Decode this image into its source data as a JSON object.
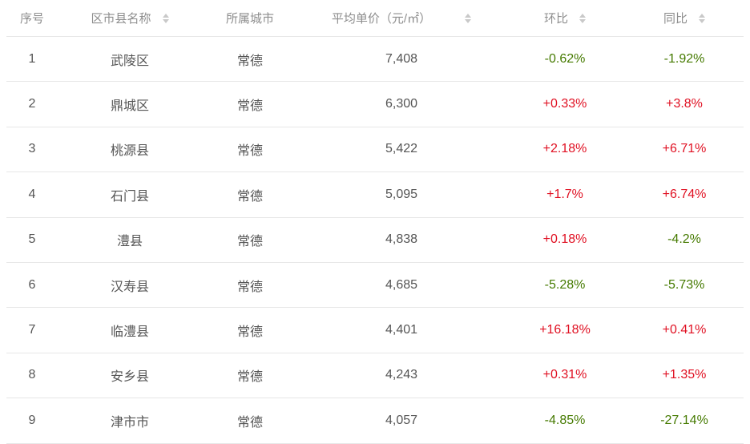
{
  "colors": {
    "trend_up_red": "#e01022",
    "trend_down_green": "#457a00",
    "header_text": "#8e8e8e",
    "body_text": "#555555",
    "divider": "#e7e7e7",
    "sort_icon": "#c9c9c9"
  },
  "table": {
    "columns": {
      "index": "序号",
      "district": "区市县名称",
      "city": "所属城市",
      "price": "平均单价（元/㎡）",
      "mom": "环比",
      "yoy": "同比"
    },
    "rows": [
      {
        "index": "1",
        "district": "武陵区",
        "city": "常德",
        "price": "7,408",
        "mom": "-0.62%",
        "mom_trend": "down",
        "yoy": "-1.92%",
        "yoy_trend": "down"
      },
      {
        "index": "2",
        "district": "鼎城区",
        "city": "常德",
        "price": "6,300",
        "mom": "+0.33%",
        "mom_trend": "up",
        "yoy": "+3.8%",
        "yoy_trend": "up"
      },
      {
        "index": "3",
        "district": "桃源县",
        "city": "常德",
        "price": "5,422",
        "mom": "+2.18%",
        "mom_trend": "up",
        "yoy": "+6.71%",
        "yoy_trend": "up"
      },
      {
        "index": "4",
        "district": "石门县",
        "city": "常德",
        "price": "5,095",
        "mom": "+1.7%",
        "mom_trend": "up",
        "yoy": "+6.74%",
        "yoy_trend": "up"
      },
      {
        "index": "5",
        "district": "澧县",
        "city": "常德",
        "price": "4,838",
        "mom": "+0.18%",
        "mom_trend": "up",
        "yoy": "-4.2%",
        "yoy_trend": "down"
      },
      {
        "index": "6",
        "district": "汉寿县",
        "city": "常德",
        "price": "4,685",
        "mom": "-5.28%",
        "mom_trend": "down",
        "yoy": "-5.73%",
        "yoy_trend": "down"
      },
      {
        "index": "7",
        "district": "临澧县",
        "city": "常德",
        "price": "4,401",
        "mom": "+16.18%",
        "mom_trend": "up",
        "yoy": "+0.41%",
        "yoy_trend": "up"
      },
      {
        "index": "8",
        "district": "安乡县",
        "city": "常德",
        "price": "4,243",
        "mom": "+0.31%",
        "mom_trend": "up",
        "yoy": "+1.35%",
        "yoy_trend": "up"
      },
      {
        "index": "9",
        "district": "津市市",
        "city": "常德",
        "price": "4,057",
        "mom": "-4.85%",
        "mom_trend": "down",
        "yoy": "-27.14%",
        "yoy_trend": "down"
      }
    ]
  }
}
